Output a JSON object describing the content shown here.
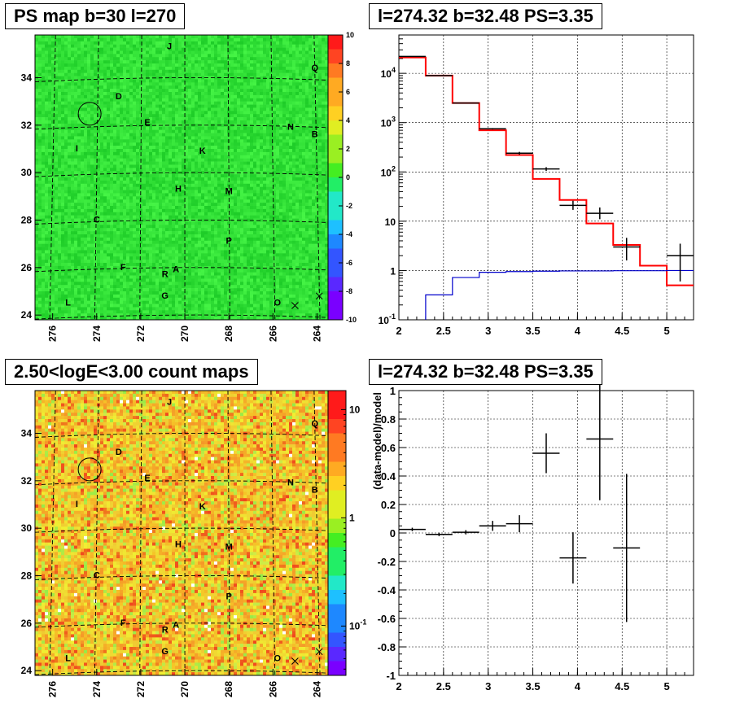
{
  "colors": {
    "data_points": "#000000",
    "model_total": "#ff0000",
    "model_background": "#0000cc",
    "grid": "#000000",
    "map_green": "#33e833",
    "map_counts_yellow": "#f2d633",
    "source_marker": "#000000"
  },
  "chart_data": [
    {
      "id": "ps_map",
      "type": "heatmap",
      "title": "PS map b=30 l=270",
      "xlabel": "",
      "ylabel": "",
      "xlim": [
        276.8,
        263.5
      ],
      "ylim": [
        23.8,
        35.8
      ],
      "x_ticks": [
        "276",
        "274",
        "272",
        "270",
        "268",
        "266",
        "264"
      ],
      "y_ticks": [
        "24",
        "26",
        "28",
        "30",
        "32",
        "34"
      ],
      "grid": true,
      "colorbar": {
        "scale": "linear",
        "min": -10,
        "max": 10,
        "ticks": [
          "10",
          "8",
          "6",
          "4",
          "2",
          "0",
          "-2",
          "-4",
          "-6",
          "-8",
          "-10"
        ]
      },
      "typical_value": 0,
      "sources": [
        {
          "label": "J",
          "x": 270.7,
          "y": 35.2
        },
        {
          "label": "Q",
          "x": 264.1,
          "y": 34.3
        },
        {
          "label": "D",
          "x": 273.0,
          "y": 33.1
        },
        {
          "label": "E",
          "x": 271.7,
          "y": 32.0
        },
        {
          "label": "N",
          "x": 265.2,
          "y": 31.8
        },
        {
          "label": "B",
          "x": 264.1,
          "y": 31.5
        },
        {
          "label": "I",
          "x": 274.9,
          "y": 30.9
        },
        {
          "label": "K",
          "x": 269.2,
          "y": 30.8
        },
        {
          "label": "H",
          "x": 270.3,
          "y": 29.2
        },
        {
          "label": "M",
          "x": 268.0,
          "y": 29.1
        },
        {
          "label": "C",
          "x": 274.0,
          "y": 27.9
        },
        {
          "label": "P",
          "x": 268.0,
          "y": 27.0
        },
        {
          "label": "F",
          "x": 272.8,
          "y": 25.9
        },
        {
          "label": "R",
          "x": 270.9,
          "y": 25.6
        },
        {
          "label": "A",
          "x": 270.4,
          "y": 25.8
        },
        {
          "label": "G",
          "x": 270.9,
          "y": 24.7
        },
        {
          "label": "L",
          "x": 275.3,
          "y": 24.4
        },
        {
          "label": "O",
          "x": 265.8,
          "y": 24.4
        }
      ],
      "roi_circle": {
        "x": 274.32,
        "y": 32.48
      },
      "x_markers": [
        {
          "x": 265.0,
          "y": 24.4
        },
        {
          "x": 263.9,
          "y": 24.8
        }
      ]
    },
    {
      "id": "counts_spectrum",
      "type": "line",
      "title": "l=274.32 b=32.48 PS=3.35",
      "xlabel": "",
      "ylabel": "",
      "xlim": [
        2,
        5.3
      ],
      "ylim": [
        0.1,
        60000
      ],
      "y_scale": "log",
      "x_ticks": [
        "2",
        "2.5",
        "3",
        "3.5",
        "4",
        "4.5",
        "5"
      ],
      "y_tick_labels": [
        {
          "value": 0.1,
          "label": "10",
          "exp": "-1"
        },
        {
          "value": 1,
          "label": "1",
          "exp": ""
        },
        {
          "value": 10,
          "label": "10",
          "exp": ""
        },
        {
          "value": 100,
          "label": "10",
          "exp": "2"
        },
        {
          "value": 1000,
          "label": "10",
          "exp": "3"
        },
        {
          "value": 10000,
          "label": "10",
          "exp": "4"
        }
      ],
      "grid": true,
      "bin_edges": [
        2.0,
        2.3,
        2.6,
        2.9,
        3.2,
        3.5,
        3.8,
        4.1,
        4.4,
        4.7,
        5.0,
        5.3
      ],
      "series": [
        {
          "role": "model_total",
          "values": [
            21000,
            9000,
            2500,
            700,
            220,
            72,
            27,
            9,
            3.3,
            1.25,
            0.5
          ]
        },
        {
          "role": "model_background",
          "values": [
            0.07,
            0.32,
            0.72,
            0.92,
            0.95,
            0.97,
            0.98,
            0.98,
            0.99,
            0.99,
            1.0
          ]
        },
        {
          "role": "data",
          "points": [
            {
              "x": 2.15,
              "y": 22000,
              "xerr": 0.15,
              "ylo": 21800,
              "yhi": 22200
            },
            {
              "x": 2.45,
              "y": 9000,
              "xerr": 0.15,
              "ylo": 8900,
              "yhi": 9100
            },
            {
              "x": 2.75,
              "y": 2500,
              "xerr": 0.15,
              "ylo": 2460,
              "yhi": 2540
            },
            {
              "x": 3.05,
              "y": 750,
              "xerr": 0.15,
              "ylo": 725,
              "yhi": 775
            },
            {
              "x": 3.35,
              "y": 240,
              "xerr": 0.15,
              "ylo": 225,
              "yhi": 255
            },
            {
              "x": 3.65,
              "y": 115,
              "xerr": 0.15,
              "ylo": 105,
              "yhi": 125
            },
            {
              "x": 3.95,
              "y": 21,
              "xerr": 0.15,
              "ylo": 17,
              "yhi": 26
            },
            {
              "x": 4.25,
              "y": 14.5,
              "xerr": 0.15,
              "ylo": 11,
              "yhi": 19
            },
            {
              "x": 4.55,
              "y": 3,
              "xerr": 0.15,
              "ylo": 1.6,
              "yhi": 4.6
            },
            {
              "x": 5.15,
              "y": 2,
              "xerr": 0.15,
              "ylo": 0.6,
              "yhi": 3.5
            }
          ]
        }
      ]
    },
    {
      "id": "count_map",
      "type": "heatmap",
      "title": "2.50<logE<3.00 count maps",
      "xlabel": "",
      "ylabel": "",
      "xlim": [
        276.8,
        263.5
      ],
      "ylim": [
        23.8,
        35.8
      ],
      "x_ticks": [
        "276",
        "274",
        "272",
        "270",
        "268",
        "266",
        "264"
      ],
      "y_ticks": [
        "24",
        "26",
        "28",
        "30",
        "32",
        "34"
      ],
      "grid": true,
      "colorbar": {
        "scale": "log",
        "tick_labels": [
          {
            "value": 10,
            "label": "10",
            "exp": ""
          },
          {
            "value": 1,
            "label": "1",
            "exp": ""
          },
          {
            "value": 0.1,
            "label": "10",
            "exp": "-1"
          }
        ]
      },
      "typical_value": 4,
      "sources_ref": "ps_map",
      "roi_circle": {
        "x": 274.32,
        "y": 32.48
      },
      "x_markers": [
        {
          "x": 265.0,
          "y": 24.4
        },
        {
          "x": 263.9,
          "y": 24.8
        }
      ]
    },
    {
      "id": "residuals",
      "type": "scatter",
      "title": "l=274.32 b=32.48 PS=3.35",
      "xlabel": "",
      "ylabel": "(data-model)/model",
      "xlim": [
        2,
        5.3
      ],
      "ylim": [
        -1,
        1
      ],
      "x_ticks": [
        "2",
        "2.5",
        "3",
        "3.5",
        "4",
        "4.5",
        "5"
      ],
      "y_ticks": [
        "-1",
        "-0.8",
        "-0.6",
        "-0.4",
        "-0.2",
        "0",
        "0.2",
        "0.4",
        "0.6",
        "0.8",
        "1"
      ],
      "grid": true,
      "points": [
        {
          "x": 2.15,
          "y": 0.025,
          "xerr": 0.15,
          "yerr": 0.012
        },
        {
          "x": 2.45,
          "y": -0.01,
          "xerr": 0.15,
          "yerr": 0.012
        },
        {
          "x": 2.75,
          "y": 0.005,
          "xerr": 0.15,
          "yerr": 0.015
        },
        {
          "x": 3.05,
          "y": 0.05,
          "xerr": 0.15,
          "yerr": 0.035
        },
        {
          "x": 3.35,
          "y": 0.065,
          "xerr": 0.15,
          "yerr": 0.06
        },
        {
          "x": 3.65,
          "y": 0.56,
          "xerr": 0.15,
          "yerr": 0.14
        },
        {
          "x": 3.95,
          "y": -0.175,
          "xerr": 0.15,
          "yerr": 0.18
        },
        {
          "x": 4.25,
          "y": 0.66,
          "xerr": 0.15,
          "yerr": 0.43
        },
        {
          "x": 4.55,
          "y": -0.105,
          "xerr": 0.15,
          "yerr": 0.52
        }
      ]
    }
  ]
}
